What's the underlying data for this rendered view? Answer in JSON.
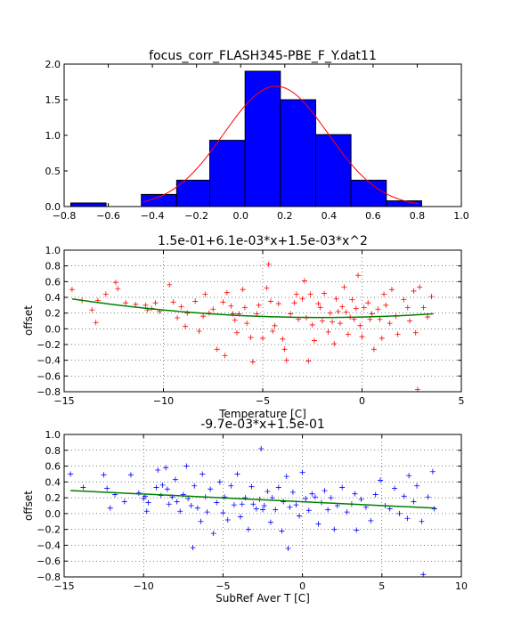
{
  "chart_data": [
    {
      "type": "bar",
      "title": "focus_corr_FLASH345-PBE_F_Y.dat11",
      "xlabel": "",
      "ylabel": "",
      "xlim": [
        -0.8,
        1.0
      ],
      "ylim": [
        0,
        2.0
      ],
      "xticks": [
        "−0.8",
        "−0.6",
        "−0.4",
        "−0.2",
        "0.0",
        "0.2",
        "0.4",
        "0.6",
        "0.8",
        "1.0"
      ],
      "yticks": [
        "0.0",
        "0.5",
        "1.0",
        "1.5",
        "2.0"
      ],
      "grid": false,
      "bar_color": "#0000ff",
      "bins": [
        {
          "x0": -0.77,
          "x1": -0.61,
          "value": 0.05
        },
        {
          "x0": -0.61,
          "x1": -0.45,
          "value": 0.0
        },
        {
          "x0": -0.45,
          "x1": -0.29,
          "value": 0.17
        },
        {
          "x0": -0.29,
          "x1": -0.14,
          "value": 0.37
        },
        {
          "x0": -0.14,
          "x1": 0.02,
          "value": 0.93
        },
        {
          "x0": 0.02,
          "x1": 0.18,
          "value": 1.9
        },
        {
          "x0": 0.18,
          "x1": 0.34,
          "value": 1.5
        },
        {
          "x0": 0.34,
          "x1": 0.5,
          "value": 1.01
        },
        {
          "x0": 0.5,
          "x1": 0.66,
          "value": 0.37
        },
        {
          "x0": 0.66,
          "x1": 0.82,
          "value": 0.08
        }
      ],
      "fit_curve": {
        "type": "gaussian",
        "mean": 0.16,
        "sigma": 0.236,
        "peak": 1.69,
        "color": "#ff0000"
      }
    },
    {
      "type": "scatter",
      "title": "1.5e-01+6.1e-03*x+1.5e-03*x^2",
      "xlabel": "Temperature [C]",
      "ylabel": "offset",
      "xlim": [
        -15,
        5
      ],
      "ylim": [
        -0.8,
        1.0
      ],
      "xticks": [
        "−15",
        "−10",
        "−5",
        "0",
        "5"
      ],
      "yticks": [
        "−0.8",
        "−0.6",
        "−0.4",
        "−0.2",
        "0.0",
        "0.2",
        "0.4",
        "0.6",
        "0.8",
        "1.0"
      ],
      "grid": true,
      "marker": "+",
      "marker_color": "#ff0000",
      "fit": {
        "type": "poly2",
        "c0": 0.15,
        "c1": 0.0061,
        "c2": 0.0015,
        "x_range": [
          -14.6,
          3.6
        ],
        "color": "#008000"
      },
      "points": [
        [
          -14.6,
          0.5
        ],
        [
          -14.1,
          0.36
        ],
        [
          -13.6,
          0.24
        ],
        [
          -13.4,
          0.08
        ],
        [
          -12.9,
          0.44
        ],
        [
          -12.4,
          0.59
        ],
        [
          -12.3,
          0.51
        ],
        [
          -11.4,
          0.31
        ],
        [
          -10.9,
          0.3
        ],
        [
          -10.6,
          0.26
        ],
        [
          -10.4,
          0.33
        ],
        [
          -10.2,
          0.22
        ],
        [
          -9.7,
          0.56
        ],
        [
          -9.5,
          0.34
        ],
        [
          -9.3,
          0.14
        ],
        [
          -9.1,
          0.28
        ],
        [
          -8.9,
          0.03
        ],
        [
          -8.8,
          0.2
        ],
        [
          -8.4,
          0.35
        ],
        [
          -8.2,
          -0.03
        ],
        [
          -8.0,
          0.16
        ],
        [
          -7.9,
          0.44
        ],
        [
          -7.7,
          0.2
        ],
        [
          -7.3,
          -0.26
        ],
        [
          -7.0,
          0.34
        ],
        [
          -6.9,
          -0.34
        ],
        [
          -6.8,
          0.46
        ],
        [
          -6.5,
          0.19
        ],
        [
          -6.4,
          0.11
        ],
        [
          -6.3,
          -0.05
        ],
        [
          -6.2,
          0.19
        ],
        [
          -6.0,
          0.5
        ],
        [
          -5.8,
          0.07
        ],
        [
          -5.6,
          -0.11
        ],
        [
          -5.5,
          -0.42
        ],
        [
          -5.3,
          0.19
        ],
        [
          -5.2,
          0.3
        ],
        [
          -5.0,
          -0.12
        ],
        [
          -4.8,
          0.52
        ],
        [
          -4.6,
          0.35
        ],
        [
          -4.5,
          -0.03
        ],
        [
          -4.4,
          0.04
        ],
        [
          -4.2,
          0.32
        ],
        [
          -4.0,
          -0.13
        ],
        [
          -3.8,
          -0.4
        ],
        [
          -3.6,
          0.19
        ],
        [
          -3.4,
          0.33
        ],
        [
          -3.2,
          0.12
        ],
        [
          -3.0,
          0.38
        ],
        [
          -2.9,
          0.61
        ],
        [
          -2.8,
          0.14
        ],
        [
          -2.6,
          0.44
        ],
        [
          -2.5,
          0.05
        ],
        [
          -2.4,
          -0.15
        ],
        [
          -2.2,
          0.32
        ],
        [
          -2.1,
          0.27
        ],
        [
          -2.0,
          0.1
        ],
        [
          -1.9,
          0.45
        ],
        [
          -1.7,
          -0.04
        ],
        [
          -1.6,
          0.2
        ],
        [
          -1.5,
          0.09
        ],
        [
          -1.4,
          -0.19
        ],
        [
          -1.3,
          0.38
        ],
        [
          -1.1,
          0.07
        ],
        [
          -1.0,
          0.28
        ],
        [
          -0.9,
          0.53
        ],
        [
          -0.8,
          0.21
        ],
        [
          -0.7,
          -0.07
        ],
        [
          -0.6,
          0.15
        ],
        [
          -0.5,
          0.37
        ],
        [
          -0.4,
          0.12
        ],
        [
          -0.2,
          0.68
        ],
        [
          -0.1,
          0.04
        ],
        [
          0.0,
          -0.1
        ],
        [
          0.1,
          0.27
        ],
        [
          0.3,
          0.33
        ],
        [
          0.4,
          0.12
        ],
        [
          0.6,
          -0.26
        ],
        [
          0.8,
          0.25
        ],
        [
          0.9,
          0.12
        ],
        [
          1.0,
          -0.12
        ],
        [
          1.2,
          0.3
        ],
        [
          1.4,
          0.07
        ],
        [
          1.5,
          0.5
        ],
        [
          1.7,
          0.16
        ],
        [
          1.8,
          -0.07
        ],
        [
          2.1,
          0.37
        ],
        [
          2.3,
          0.27
        ],
        [
          2.4,
          0.1
        ],
        [
          2.6,
          0.48
        ],
        [
          2.7,
          -0.05
        ],
        [
          2.9,
          0.53
        ],
        [
          3.1,
          0.27
        ],
        [
          3.3,
          0.15
        ],
        [
          3.5,
          0.41
        ],
        [
          2.8,
          -0.77
        ],
        [
          -13.3,
          0.36
        ],
        [
          -11.9,
          0.33
        ],
        [
          -10.8,
          0.24
        ],
        [
          -7.5,
          0.25
        ],
        [
          -6.6,
          0.29
        ],
        [
          -5.9,
          0.27
        ],
        [
          -4.7,
          0.82
        ],
        [
          -3.9,
          -0.26
        ],
        [
          -3.3,
          0.44
        ],
        [
          -2.7,
          -0.41
        ],
        [
          -1.2,
          0.22
        ],
        [
          -0.3,
          0.26
        ],
        [
          0.5,
          0.19
        ],
        [
          1.1,
          0.44
        ]
      ]
    },
    {
      "type": "scatter",
      "title": "-9.7e-03*x+1.5e-01",
      "xlabel": "SubRef Aver T [C]",
      "ylabel": "offset",
      "xlim": [
        -15,
        10
      ],
      "ylim": [
        -0.8,
        1.0
      ],
      "xticks": [
        "−15",
        "−10",
        "−5",
        "0",
        "5",
        "10"
      ],
      "yticks": [
        "−0.8",
        "−0.6",
        "−0.4",
        "−0.2",
        "0.0",
        "0.2",
        "0.4",
        "0.6",
        "0.8",
        "1.0"
      ],
      "grid": true,
      "marker": "+",
      "marker_color": "#0000ff",
      "fit": {
        "type": "linear",
        "slope": -0.0097,
        "intercept": 0.15,
        "x_range": [
          -14.6,
          8.4
        ],
        "color": "#008000"
      },
      "points": [
        [
          -14.6,
          0.5
        ],
        [
          -13.8,
          0.33
        ],
        [
          -12.5,
          0.49
        ],
        [
          -12.3,
          0.32
        ],
        [
          -12.1,
          0.07
        ],
        [
          -11.8,
          0.24
        ],
        [
          -10.8,
          0.49
        ],
        [
          -10.3,
          0.26
        ],
        [
          -10.0,
          0.19
        ],
        [
          -9.9,
          0.22
        ],
        [
          -9.8,
          0.03
        ],
        [
          -9.7,
          0.14
        ],
        [
          -9.2,
          0.33
        ],
        [
          -9.1,
          0.55
        ],
        [
          -8.9,
          0.23
        ],
        [
          -8.8,
          0.36
        ],
        [
          -8.6,
          0.58
        ],
        [
          -8.5,
          0.31
        ],
        [
          -8.4,
          0.12
        ],
        [
          -8.2,
          0.21
        ],
        [
          -8.0,
          0.43
        ],
        [
          -7.9,
          0.15
        ],
        [
          -7.7,
          0.03
        ],
        [
          -7.5,
          0.24
        ],
        [
          -7.3,
          0.6
        ],
        [
          -7.2,
          0.19
        ],
        [
          -7.0,
          0.1
        ],
        [
          -6.8,
          0.35
        ],
        [
          -6.6,
          0.07
        ],
        [
          -6.4,
          -0.1
        ],
        [
          -6.3,
          0.5
        ],
        [
          -6.1,
          0.21
        ],
        [
          -6.0,
          0.02
        ],
        [
          -5.8,
          0.31
        ],
        [
          -5.6,
          -0.25
        ],
        [
          -5.4,
          0.14
        ],
        [
          -5.2,
          0.4
        ],
        [
          -5.0,
          0.01
        ],
        [
          -4.9,
          0.21
        ],
        [
          -4.7,
          -0.08
        ],
        [
          -4.5,
          0.35
        ],
        [
          -4.3,
          0.11
        ],
        [
          -4.1,
          0.5
        ],
        [
          -3.9,
          -0.04
        ],
        [
          -3.8,
          0.12
        ],
        [
          -3.6,
          0.2
        ],
        [
          -3.4,
          -0.2
        ],
        [
          -3.2,
          0.34
        ],
        [
          -3.1,
          0.12
        ],
        [
          -2.9,
          0.06
        ],
        [
          -2.7,
          0.18
        ],
        [
          -2.6,
          0.82
        ],
        [
          -2.4,
          0.1
        ],
        [
          -2.2,
          0.28
        ],
        [
          -2.0,
          -0.11
        ],
        [
          -1.9,
          0.2
        ],
        [
          -1.7,
          0.05
        ],
        [
          -1.5,
          0.33
        ],
        [
          -1.3,
          -0.22
        ],
        [
          -1.2,
          0.15
        ],
        [
          -1.0,
          0.47
        ],
        [
          -0.8,
          0.08
        ],
        [
          -0.6,
          0.27
        ],
        [
          -0.4,
          0.11
        ],
        [
          -0.2,
          -0.03
        ],
        [
          0.0,
          0.52
        ],
        [
          0.2,
          0.19
        ],
        [
          0.4,
          0.04
        ],
        [
          0.6,
          0.25
        ],
        [
          0.8,
          0.21
        ],
        [
          1.0,
          -0.13
        ],
        [
          1.2,
          0.14
        ],
        [
          1.4,
          0.29
        ],
        [
          1.6,
          0.05
        ],
        [
          1.8,
          0.2
        ],
        [
          2.0,
          -0.2
        ],
        [
          2.2,
          0.1
        ],
        [
          2.5,
          0.33
        ],
        [
          2.8,
          0.02
        ],
        [
          3.1,
          0.12
        ],
        [
          3.4,
          -0.21
        ],
        [
          3.7,
          0.18
        ],
        [
          4.0,
          0.08
        ],
        [
          4.3,
          -0.09
        ],
        [
          4.6,
          0.24
        ],
        [
          4.9,
          0.42
        ],
        [
          5.2,
          0.1
        ],
        [
          5.5,
          0.06
        ],
        [
          5.8,
          0.32
        ],
        [
          6.1,
          0.0
        ],
        [
          6.4,
          0.22
        ],
        [
          6.7,
          0.48
        ],
        [
          7.0,
          0.15
        ],
        [
          7.2,
          0.35
        ],
        [
          7.5,
          -0.1
        ],
        [
          7.6,
          -0.77
        ],
        [
          7.9,
          0.21
        ],
        [
          8.2,
          0.53
        ],
        [
          8.3,
          0.06
        ],
        [
          -6.9,
          -0.43
        ],
        [
          -2.5,
          0.05
        ],
        [
          -0.9,
          -0.44
        ],
        [
          3.3,
          0.25
        ],
        [
          -11.2,
          0.15
        ],
        [
          6.6,
          -0.06
        ]
      ]
    }
  ]
}
